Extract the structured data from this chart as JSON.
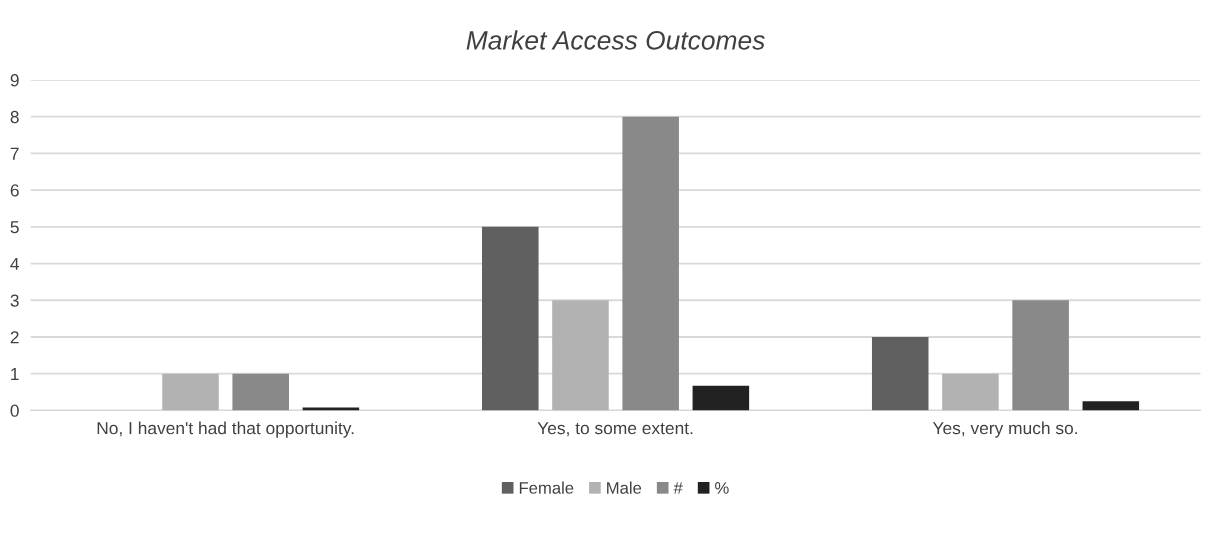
{
  "chart_data": {
    "type": "bar",
    "title": "Market Access Outcomes",
    "categories": [
      "No, I haven't had that opportunity.",
      "Yes, to some extent.",
      "Yes, very much so."
    ],
    "series": [
      {
        "name": "Female",
        "color": "#606060",
        "values": [
          0,
          5,
          2
        ]
      },
      {
        "name": "Male",
        "color": "#b2b2b2",
        "values": [
          1,
          3,
          1
        ]
      },
      {
        "name": "#",
        "color": "#898989",
        "values": [
          1,
          8,
          3
        ]
      },
      {
        "name": "%",
        "color": "#222222",
        "values": [
          0.08,
          0.67,
          0.25
        ]
      }
    ],
    "ylim": [
      0,
      9
    ],
    "yticks": [
      0,
      1,
      2,
      3,
      4,
      5,
      6,
      7,
      8,
      9
    ],
    "grid": "y",
    "legend": "bottom"
  }
}
